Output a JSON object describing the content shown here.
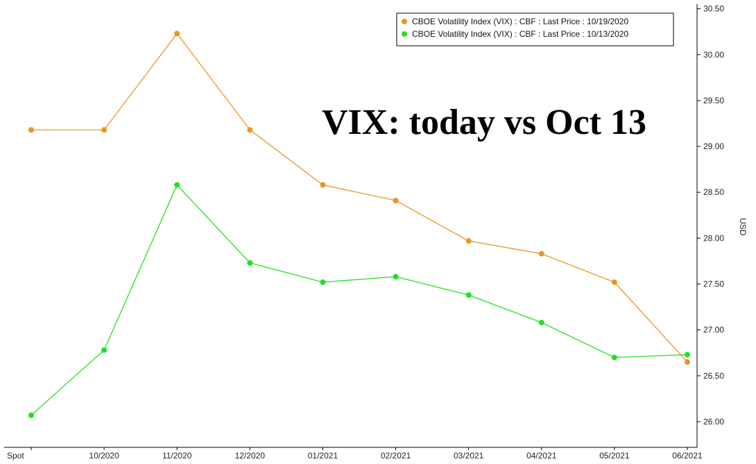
{
  "chart_data": {
    "type": "line",
    "annotation": "VIX: today vs Oct 13",
    "ylabel": "USD",
    "xlabel": "",
    "categories": [
      "Spot",
      "10/2020",
      "11/2020",
      "12/2020",
      "01/2021",
      "02/2021",
      "03/2021",
      "04/2021",
      "05/2021",
      "06/2021"
    ],
    "ylim": [
      25.72,
      30.55
    ],
    "yticks": [
      26.0,
      26.5,
      27.0,
      27.5,
      28.0,
      28.5,
      29.0,
      29.5,
      30.0,
      30.5
    ],
    "ytick_labels": [
      "26.00",
      "26.50",
      "27.00",
      "27.50",
      "28.00",
      "28.50",
      "29.00",
      "29.50",
      "30.00",
      "30.50"
    ],
    "legend_position": "top-right",
    "grid": false,
    "series": [
      {
        "name": "CBOE Volatility Index (VIX) : CBF : Last Price : 10/19/2020",
        "color": "#E8971E",
        "values": [
          29.18,
          29.18,
          30.23,
          29.18,
          28.58,
          28.41,
          27.97,
          27.83,
          27.52,
          26.65
        ]
      },
      {
        "name": "CBOE Volatility Index (VIX) : CBF : Last Price : 10/13/2020",
        "color": "#22E022",
        "values": [
          26.07,
          26.78,
          28.58,
          27.73,
          27.52,
          27.58,
          27.38,
          27.08,
          26.7,
          26.73
        ]
      }
    ]
  }
}
